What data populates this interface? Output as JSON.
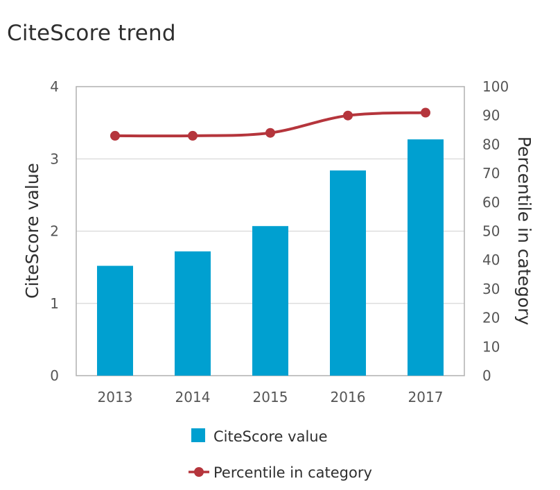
{
  "chart_data": {
    "type": "bar",
    "title": "CiteScore trend",
    "categories": [
      "2013",
      "2014",
      "2015",
      "2016",
      "2017"
    ],
    "series": [
      {
        "name": "CiteScore value",
        "kind": "bar",
        "axis": "left",
        "color": "#00a0d0",
        "values": [
          1.52,
          1.72,
          2.07,
          2.84,
          3.27
        ]
      },
      {
        "name": "Percentile in category",
        "kind": "line",
        "axis": "right",
        "color": "#b5353c",
        "values": [
          83,
          83,
          84,
          90,
          91
        ]
      }
    ],
    "ylabel": "CiteScore value",
    "y2label": "Percentile in category",
    "ylim": [
      0,
      4
    ],
    "y2lim": [
      0,
      100
    ],
    "yticks": [
      "0",
      "1",
      "2",
      "3",
      "4"
    ],
    "y2ticks": [
      "0",
      "10",
      "20",
      "30",
      "40",
      "50",
      "60",
      "70",
      "80",
      "90",
      "100"
    ],
    "grid": true,
    "legend_position": "bottom"
  }
}
